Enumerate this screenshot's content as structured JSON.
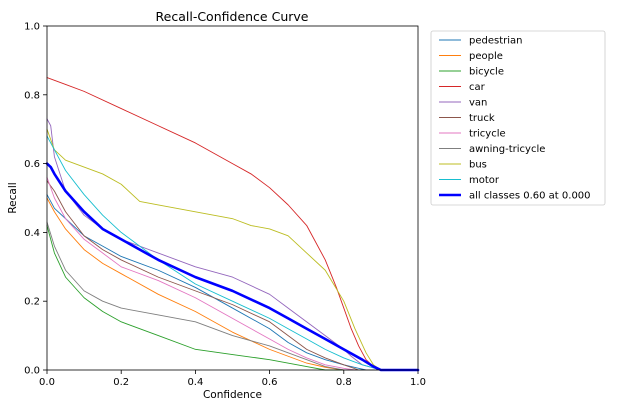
{
  "chart_data": {
    "type": "line",
    "title": "Recall-Confidence Curve",
    "xlabel": "Confidence",
    "ylabel": "Recall",
    "xlim": [
      0,
      1
    ],
    "ylim": [
      0,
      1
    ],
    "xticks": [
      "0.0",
      "0.2",
      "0.4",
      "0.6",
      "0.8",
      "1.0"
    ],
    "yticks": [
      "0.0",
      "0.2",
      "0.4",
      "0.6",
      "0.8",
      "1.0"
    ],
    "grid": false,
    "legend_position": "outside-right",
    "series": [
      {
        "name": "pedestrian",
        "color": "#1f77b4",
        "width": 0.9,
        "x": [
          0,
          0.02,
          0.05,
          0.1,
          0.15,
          0.2,
          0.3,
          0.4,
          0.5,
          0.6,
          0.65,
          0.7,
          0.75,
          0.8,
          0.84,
          0.86,
          0.9,
          1.0
        ],
        "y": [
          0.51,
          0.47,
          0.44,
          0.39,
          0.36,
          0.33,
          0.29,
          0.24,
          0.18,
          0.12,
          0.08,
          0.05,
          0.03,
          0.015,
          0.005,
          0.0,
          0.0,
          0.0
        ]
      },
      {
        "name": "people",
        "color": "#ff7f0e",
        "width": 0.9,
        "x": [
          0,
          0.02,
          0.05,
          0.1,
          0.15,
          0.2,
          0.3,
          0.4,
          0.5,
          0.6,
          0.65,
          0.7,
          0.75,
          0.8,
          0.9,
          1.0
        ],
        "y": [
          0.5,
          0.46,
          0.41,
          0.35,
          0.31,
          0.28,
          0.22,
          0.17,
          0.11,
          0.06,
          0.04,
          0.02,
          0.008,
          0.0,
          0.0,
          0.0
        ]
      },
      {
        "name": "bicycle",
        "color": "#2ca02c",
        "width": 0.9,
        "x": [
          0,
          0.02,
          0.05,
          0.1,
          0.15,
          0.2,
          0.3,
          0.4,
          0.5,
          0.6,
          0.7,
          0.75,
          0.8,
          0.9,
          1.0
        ],
        "y": [
          0.42,
          0.34,
          0.27,
          0.21,
          0.17,
          0.14,
          0.1,
          0.06,
          0.045,
          0.03,
          0.01,
          0.0,
          0.0,
          0.0,
          0.0
        ]
      },
      {
        "name": "car",
        "color": "#d62728",
        "width": 0.9,
        "x": [
          0,
          0.05,
          0.1,
          0.2,
          0.3,
          0.4,
          0.5,
          0.55,
          0.6,
          0.65,
          0.7,
          0.75,
          0.78,
          0.8,
          0.82,
          0.84,
          0.86,
          0.88,
          0.9,
          1.0
        ],
        "y": [
          0.85,
          0.83,
          0.81,
          0.76,
          0.71,
          0.66,
          0.6,
          0.57,
          0.53,
          0.48,
          0.42,
          0.32,
          0.24,
          0.18,
          0.12,
          0.07,
          0.03,
          0.01,
          0.0,
          0.0
        ]
      },
      {
        "name": "van",
        "color": "#9467bd",
        "width": 0.9,
        "x": [
          0,
          0.01,
          0.02,
          0.05,
          0.1,
          0.15,
          0.2,
          0.3,
          0.4,
          0.5,
          0.6,
          0.65,
          0.7,
          0.75,
          0.8,
          0.82,
          0.85,
          0.9,
          1.0
        ],
        "y": [
          0.73,
          0.71,
          0.62,
          0.52,
          0.45,
          0.41,
          0.38,
          0.34,
          0.3,
          0.27,
          0.22,
          0.18,
          0.14,
          0.1,
          0.06,
          0.04,
          0.015,
          0.0,
          0.0
        ]
      },
      {
        "name": "truck",
        "color": "#8c564b",
        "width": 0.9,
        "x": [
          0,
          0.02,
          0.05,
          0.1,
          0.15,
          0.2,
          0.3,
          0.4,
          0.5,
          0.6,
          0.65,
          0.7,
          0.75,
          0.8,
          0.84,
          0.9,
          1.0
        ],
        "y": [
          0.55,
          0.52,
          0.46,
          0.39,
          0.35,
          0.32,
          0.27,
          0.23,
          0.19,
          0.14,
          0.1,
          0.06,
          0.035,
          0.015,
          0.0,
          0.0,
          0.0
        ]
      },
      {
        "name": "tricycle",
        "color": "#e377c2",
        "width": 0.9,
        "x": [
          0,
          0.02,
          0.05,
          0.1,
          0.15,
          0.2,
          0.3,
          0.4,
          0.5,
          0.6,
          0.65,
          0.7,
          0.75,
          0.8,
          0.83,
          0.9,
          1.0
        ],
        "y": [
          0.56,
          0.5,
          0.44,
          0.38,
          0.34,
          0.3,
          0.26,
          0.21,
          0.15,
          0.09,
          0.06,
          0.035,
          0.015,
          0.005,
          0.0,
          0.0,
          0.0
        ]
      },
      {
        "name": "awning-tricycle",
        "color": "#7f7f7f",
        "width": 0.9,
        "x": [
          0,
          0.02,
          0.05,
          0.1,
          0.15,
          0.2,
          0.3,
          0.4,
          0.5,
          0.6,
          0.65,
          0.7,
          0.75,
          0.8,
          0.9,
          1.0
        ],
        "y": [
          0.43,
          0.36,
          0.29,
          0.23,
          0.2,
          0.18,
          0.16,
          0.14,
          0.1,
          0.07,
          0.05,
          0.03,
          0.01,
          0.0,
          0.0,
          0.0
        ]
      },
      {
        "name": "bus",
        "color": "#bcbd22",
        "width": 0.9,
        "x": [
          0,
          0.01,
          0.02,
          0.05,
          0.1,
          0.15,
          0.2,
          0.25,
          0.3,
          0.4,
          0.5,
          0.55,
          0.6,
          0.65,
          0.7,
          0.75,
          0.8,
          0.83,
          0.86,
          0.88,
          0.9,
          1.0
        ],
        "y": [
          0.7,
          0.67,
          0.64,
          0.61,
          0.59,
          0.57,
          0.54,
          0.49,
          0.48,
          0.46,
          0.44,
          0.42,
          0.41,
          0.39,
          0.34,
          0.29,
          0.2,
          0.12,
          0.05,
          0.015,
          0.0,
          0.0
        ]
      },
      {
        "name": "motor",
        "color": "#17becf",
        "width": 0.9,
        "x": [
          0,
          0.02,
          0.05,
          0.1,
          0.15,
          0.2,
          0.3,
          0.4,
          0.5,
          0.6,
          0.65,
          0.7,
          0.75,
          0.8,
          0.85,
          0.9,
          1.0
        ],
        "y": [
          0.68,
          0.64,
          0.58,
          0.51,
          0.45,
          0.4,
          0.32,
          0.25,
          0.2,
          0.15,
          0.12,
          0.09,
          0.06,
          0.035,
          0.015,
          0.0,
          0.0
        ]
      },
      {
        "name": "all classes 0.60 at 0.000",
        "color": "#0000ff",
        "width": 2.6,
        "x": [
          0,
          0.01,
          0.02,
          0.05,
          0.1,
          0.15,
          0.2,
          0.3,
          0.4,
          0.5,
          0.6,
          0.65,
          0.7,
          0.75,
          0.8,
          0.85,
          0.88,
          0.9,
          1.0
        ],
        "y": [
          0.6,
          0.59,
          0.57,
          0.52,
          0.46,
          0.41,
          0.38,
          0.32,
          0.27,
          0.23,
          0.18,
          0.15,
          0.12,
          0.09,
          0.06,
          0.03,
          0.01,
          0.0,
          0.0
        ]
      }
    ]
  }
}
